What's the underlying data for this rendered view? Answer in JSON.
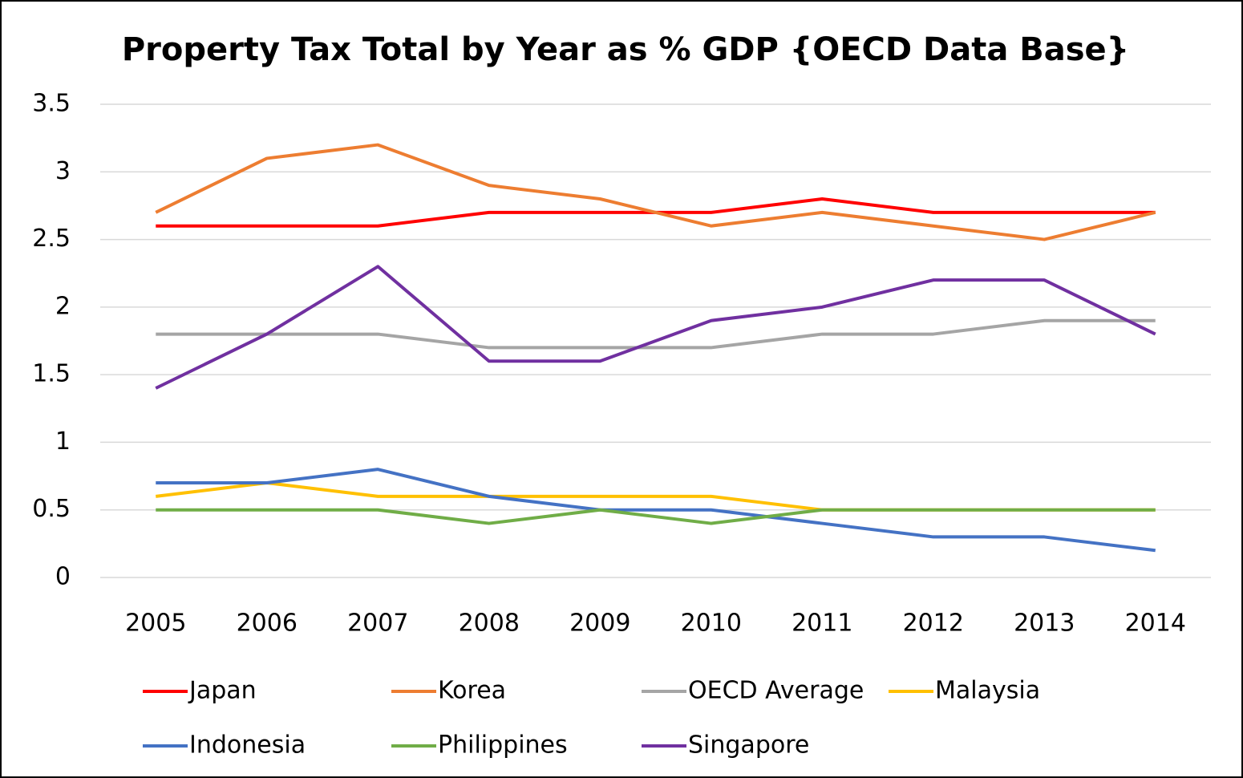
{
  "chart_data": {
    "type": "line",
    "title": "Property Tax Total by Year as % GDP {OECD Data Base}",
    "categories": [
      "2005",
      "2006",
      "2007",
      "2008",
      "2009",
      "2010",
      "2011",
      "2012",
      "2013",
      "2014"
    ],
    "series": [
      {
        "name": "Japan",
        "color": "#ff0000",
        "values": [
          2.6,
          2.6,
          2.6,
          2.7,
          2.7,
          2.7,
          2.8,
          2.7,
          2.7,
          2.7
        ]
      },
      {
        "name": "Korea",
        "color": "#ed7d31",
        "values": [
          2.7,
          3.1,
          3.2,
          2.9,
          2.8,
          2.6,
          2.7,
          2.6,
          2.5,
          2.7
        ]
      },
      {
        "name": "OECD Average",
        "color": "#a5a5a5",
        "values": [
          1.8,
          1.8,
          1.8,
          1.7,
          1.7,
          1.7,
          1.8,
          1.8,
          1.9,
          1.9
        ]
      },
      {
        "name": "Malaysia",
        "color": "#ffc000",
        "values": [
          0.6,
          0.7,
          0.6,
          0.6,
          0.6,
          0.6,
          0.5,
          0.5,
          0.5,
          0.5
        ]
      },
      {
        "name": "Indonesia",
        "color": "#4472c4",
        "values": [
          0.7,
          0.7,
          0.8,
          0.6,
          0.5,
          0.5,
          0.4,
          0.3,
          0.3,
          0.2
        ]
      },
      {
        "name": "Philippines",
        "color": "#70ad47",
        "values": [
          0.5,
          0.5,
          0.5,
          0.4,
          0.5,
          0.4,
          0.5,
          0.5,
          0.5,
          0.5
        ]
      },
      {
        "name": "Singapore",
        "color": "#7030a0",
        "values": [
          1.4,
          1.8,
          2.3,
          1.6,
          1.6,
          1.9,
          2.0,
          2.2,
          2.2,
          1.8
        ]
      }
    ],
    "ylim": [
      0,
      3.5
    ],
    "yticks": [
      0,
      0.5,
      1,
      1.5,
      2,
      2.5,
      3,
      3.5
    ],
    "grid": true,
    "legend": "bottom"
  }
}
